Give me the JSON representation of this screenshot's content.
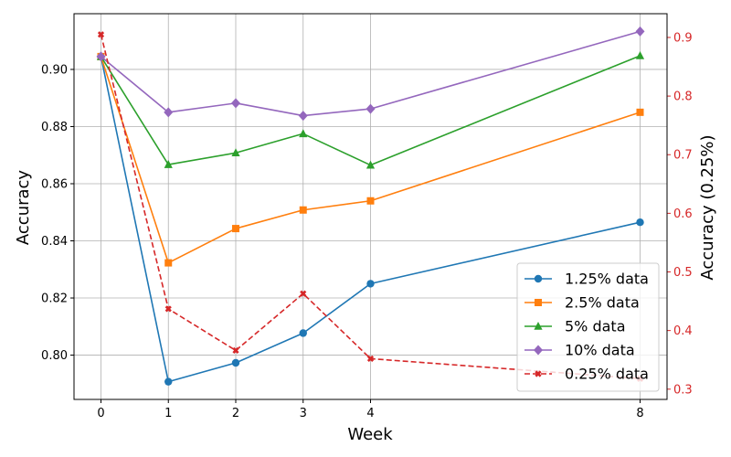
{
  "chart_data": {
    "type": "line",
    "x": [
      0,
      1,
      2,
      3,
      4,
      8
    ],
    "xlabel": "Week",
    "ylabel_left": "Accuracy",
    "ylabel_right": "Accuracy (0.25%)",
    "xlim": [
      -0.4,
      8.4
    ],
    "ylim_left": [
      0.7845,
      0.9195
    ],
    "ylim_right": [
      0.2825,
      0.9405
    ],
    "x_ticks": [
      0,
      1,
      2,
      3,
      4,
      8
    ],
    "y_ticks_left": [
      0.8,
      0.82,
      0.84,
      0.86,
      0.88,
      0.9
    ],
    "y_ticks_right": [
      0.3,
      0.4,
      0.5,
      0.6,
      0.7,
      0.8,
      0.9
    ],
    "grid": true,
    "legend_position": "lower-right",
    "series": [
      {
        "name": "1.25% data",
        "axis": "left",
        "color": "#1f77b4",
        "marker": "circle",
        "dashed": false,
        "values": [
          0.9045,
          0.7907,
          0.7973,
          0.8077,
          0.825,
          0.8465
        ]
      },
      {
        "name": "2.5% data",
        "axis": "left",
        "color": "#ff7f0e",
        "marker": "square",
        "dashed": false,
        "values": [
          0.9045,
          0.8323,
          0.8443,
          0.8508,
          0.854,
          0.885
        ]
      },
      {
        "name": "5% data",
        "axis": "left",
        "color": "#2ca02c",
        "marker": "triangle",
        "dashed": false,
        "values": [
          0.9045,
          0.8667,
          0.8708,
          0.8775,
          0.8665,
          0.9048
        ]
      },
      {
        "name": "10% data",
        "axis": "left",
        "color": "#9467bd",
        "marker": "diamond",
        "dashed": false,
        "values": [
          0.9045,
          0.885,
          0.8882,
          0.8838,
          0.8862,
          0.9133
        ]
      },
      {
        "name": "0.25% data",
        "axis": "right",
        "color": "#d62728",
        "marker": "x",
        "dashed": true,
        "values": [
          0.905,
          0.437,
          0.366,
          0.463,
          0.352,
          0.318
        ]
      }
    ]
  }
}
